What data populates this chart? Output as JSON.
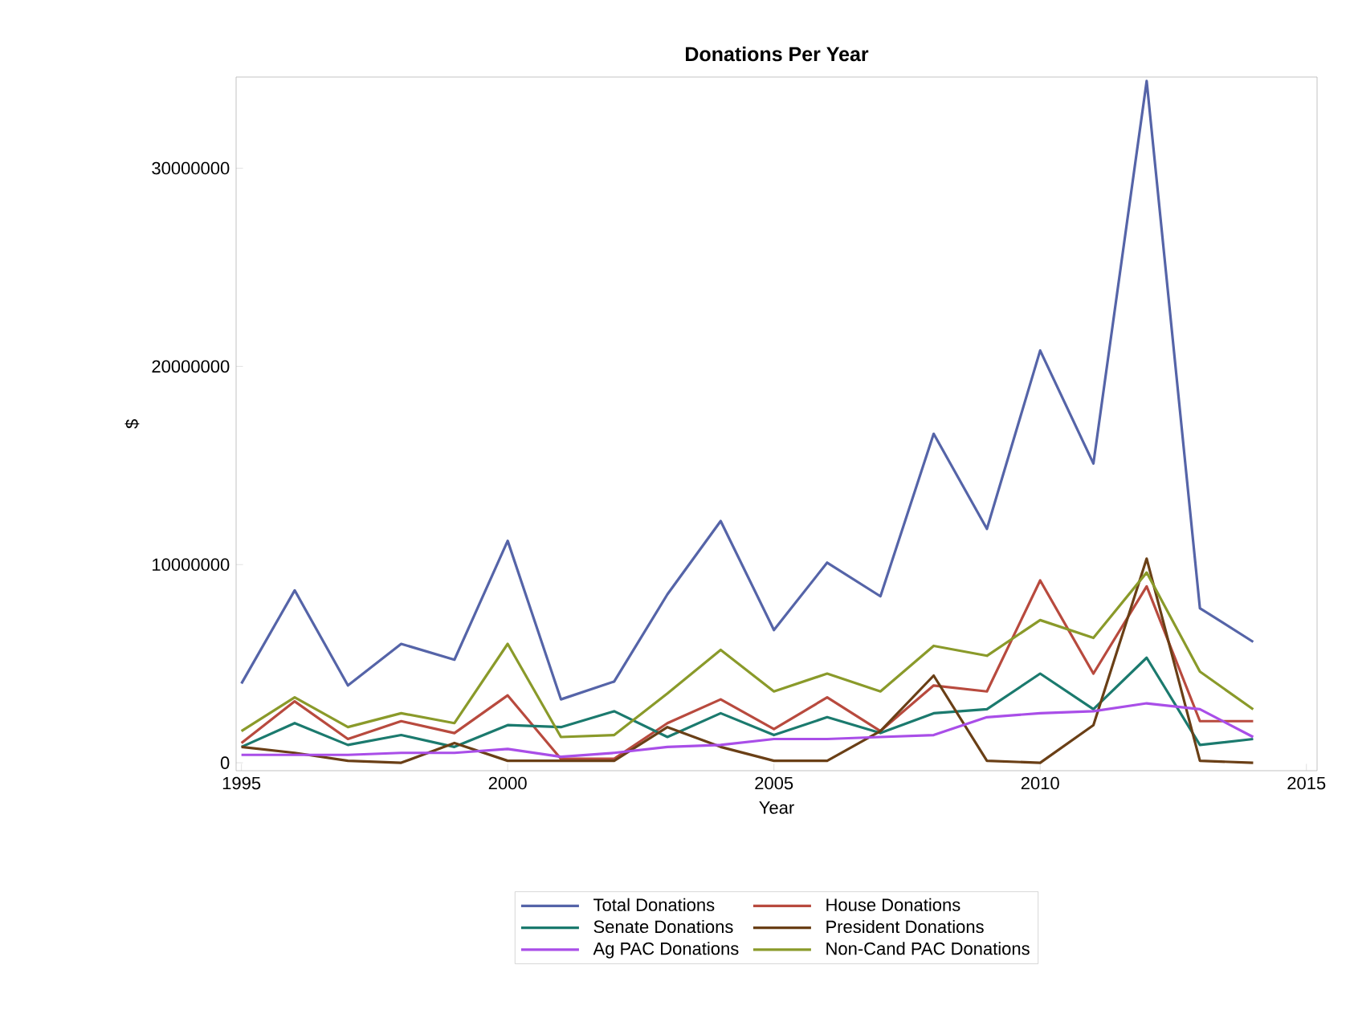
{
  "chart_data": {
    "type": "line",
    "title": "Donations Per Year",
    "xlabel": "Year",
    "ylabel": "$",
    "x": [
      1995,
      1996,
      1997,
      1998,
      1999,
      2000,
      2001,
      2002,
      2003,
      2004,
      2005,
      2006,
      2007,
      2008,
      2009,
      2010,
      2011,
      2012,
      2013,
      2014
    ],
    "series": [
      {
        "name": "Total Donations",
        "color": "#5564a8",
        "values": [
          4000000,
          8700000,
          3900000,
          6000000,
          5200000,
          11200000,
          3200000,
          4100000,
          8500000,
          12200000,
          6700000,
          10100000,
          8400000,
          16600000,
          11800000,
          20800000,
          15100000,
          34400000,
          7800000,
          6100000
        ]
      },
      {
        "name": "House Donations",
        "color": "#b84a3e",
        "values": [
          1000000,
          3100000,
          1200000,
          2100000,
          1500000,
          3400000,
          200000,
          200000,
          2000000,
          3200000,
          1700000,
          3300000,
          1600000,
          3900000,
          3600000,
          9200000,
          4500000,
          8900000,
          2100000,
          2100000
        ]
      },
      {
        "name": "Senate Donations",
        "color": "#1b7a6e",
        "values": [
          800000,
          2000000,
          900000,
          1400000,
          800000,
          1900000,
          1800000,
          2600000,
          1300000,
          2500000,
          1400000,
          2300000,
          1500000,
          2500000,
          2700000,
          4500000,
          2700000,
          5300000,
          900000,
          1200000
        ]
      },
      {
        "name": "President Donations",
        "color": "#6a3f16",
        "values": [
          800000,
          500000,
          100000,
          0,
          1000000,
          100000,
          100000,
          100000,
          1800000,
          800000,
          100000,
          100000,
          1600000,
          4400000,
          100000,
          0,
          1900000,
          10300000,
          100000,
          0
        ]
      },
      {
        "name": "Ag PAC Donations",
        "color": "#a94ee8",
        "values": [
          400000,
          400000,
          400000,
          500000,
          500000,
          700000,
          300000,
          500000,
          800000,
          900000,
          1200000,
          1200000,
          1300000,
          1400000,
          2300000,
          2500000,
          2600000,
          3000000,
          2700000,
          1300000
        ]
      },
      {
        "name": "Non-Cand PAC Donations",
        "color": "#8a9a2a",
        "values": [
          1600000,
          3300000,
          1800000,
          2500000,
          2000000,
          6000000,
          1300000,
          1400000,
          3500000,
          5700000,
          3600000,
          4500000,
          3600000,
          5900000,
          5400000,
          7200000,
          6300000,
          9600000,
          4600000,
          2700000
        ]
      }
    ],
    "xlim": [
      1994.9,
      2015.2
    ],
    "ylim": [
      -400000,
      34600000
    ],
    "xticks": [
      1995,
      2000,
      2005,
      2010,
      2015
    ],
    "yticks": [
      0,
      10000000,
      20000000,
      30000000
    ],
    "legend": "bottom",
    "grid": false,
    "marker": "none",
    "line_style": "solid"
  }
}
